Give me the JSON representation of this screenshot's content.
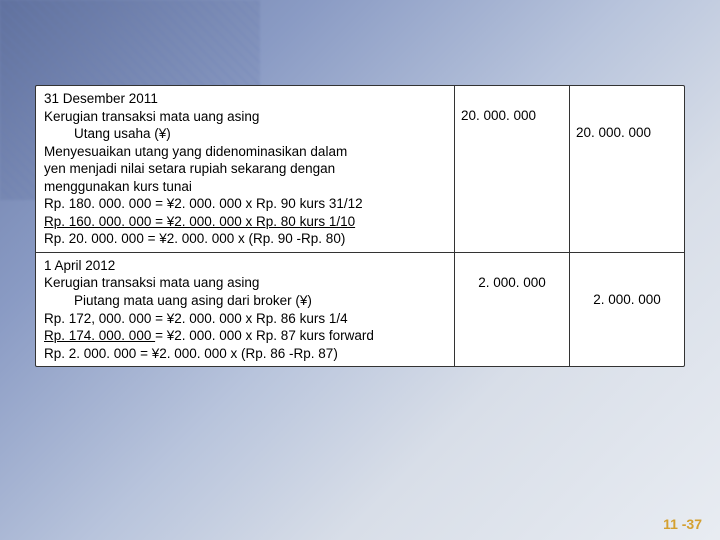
{
  "section1": {
    "date": "31 Desember 2011",
    "title": "Kerugian transaksi mata uang asing",
    "subtitle": "Utang usaha (¥)",
    "desc1": "Menyesuaikan utang yang didenominasikan dalam",
    "desc2": "yen menjadi nilai setara rupiah sekarang dengan",
    "desc3": "menggunakan kurs tunai",
    "calc1": "Rp. 180. 000. 000 = ¥2. 000. 000 x Rp. 90 kurs 31/12",
    "calc2": "Rp. 160. 000. 000 = ¥2. 000. 000 x Rp. 80 kurs 1/10",
    "calc3": "Rp.  20. 000. 000 = ¥2. 000. 000 x (Rp. 90 -Rp. 80)",
    "amount1": "20. 000. 000",
    "amount2": "20. 000. 000"
  },
  "section2": {
    "date": "1 April 2012",
    "title": "Kerugian transaksi mata uang asing",
    "subtitle": "Piutang mata uang asing dari broker (¥)",
    "calc1": "Rp. 172, 000. 000 = ¥2. 000. 000 x Rp. 86 kurs 1/4",
    "calc2a": "Rp. 174. 000. 000 ",
    "calc2b": "= ¥2. 000. 000 x Rp. 87 kurs forward",
    "calc3": "Rp.    2. 000. 000 = ¥2. 000. 000 x (Rp. 86 -Rp. 87)",
    "amount1": "2. 000. 000",
    "amount2": "2. 000. 000"
  },
  "pagenum": "11 -37",
  "colors": {
    "box_bg": "#ffffff",
    "border": "#333333",
    "text": "#000000",
    "pagenum": "#d4a030"
  }
}
